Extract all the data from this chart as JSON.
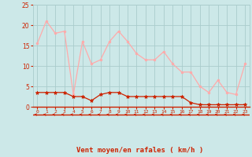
{
  "x": [
    0,
    1,
    2,
    3,
    4,
    5,
    6,
    7,
    8,
    9,
    10,
    11,
    12,
    13,
    14,
    15,
    16,
    17,
    18,
    19,
    20,
    21,
    22,
    23
  ],
  "rafales": [
    15.5,
    21.0,
    18.0,
    18.5,
    3.0,
    16.0,
    10.5,
    11.5,
    16.0,
    18.5,
    16.0,
    13.0,
    11.5,
    11.5,
    13.5,
    10.5,
    8.5,
    8.5,
    5.0,
    3.5,
    6.5,
    3.5,
    3.0,
    10.5
  ],
  "moyen": [
    3.5,
    3.5,
    3.5,
    3.5,
    2.5,
    2.5,
    1.5,
    3.0,
    3.5,
    3.5,
    2.5,
    2.5,
    2.5,
    2.5,
    2.5,
    2.5,
    2.5,
    1.0,
    0.5,
    0.5,
    0.5,
    0.5,
    0.5,
    0.5
  ],
  "line_color_rafales": "#ffaaaa",
  "line_color_moyen": "#cc2200",
  "bg_color": "#cce8e8",
  "grid_color": "#aacccc",
  "xlabel": "Vent moyen/en rafales ( km/h )",
  "xlabel_color": "#cc2200",
  "tick_color": "#cc2200",
  "ylim": [
    0,
    25
  ],
  "yticks": [
    0,
    5,
    10,
    15,
    20,
    25
  ],
  "xlim": [
    -0.5,
    23.5
  ],
  "figsize": [
    3.2,
    2.0
  ],
  "dpi": 100
}
